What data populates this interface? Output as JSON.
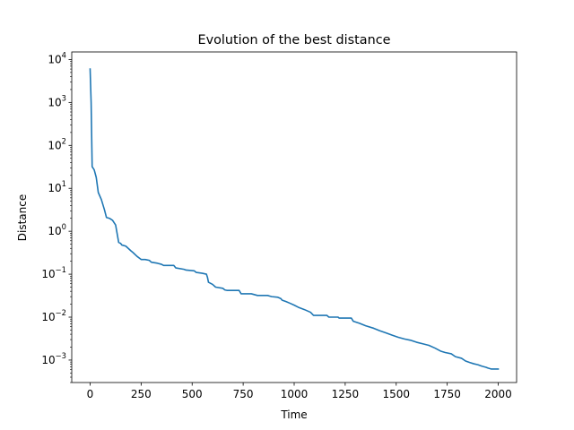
{
  "chart_data": {
    "type": "line",
    "title": "Evolution of the best distance",
    "xlabel": "Time",
    "ylabel": "Distance",
    "xlim": [
      -90,
      2090
    ],
    "ylim": [
      0.0003,
      15000
    ],
    "yscale": "log",
    "grid": false,
    "legend": null,
    "xticks": [
      0,
      250,
      500,
      750,
      1000,
      1250,
      1500,
      1750,
      2000
    ],
    "xtick_labels": [
      "0",
      "250",
      "500",
      "750",
      "1000",
      "1250",
      "1500",
      "1750",
      "2000"
    ],
    "yticks": [
      0.001,
      0.01,
      0.1,
      1,
      10,
      100,
      1000,
      10000
    ],
    "ytick_labels": [
      {
        "base": "10",
        "exp": "−3"
      },
      {
        "base": "10",
        "exp": "−2"
      },
      {
        "base": "10",
        "exp": "−1"
      },
      {
        "base": "10",
        "exp": "0"
      },
      {
        "base": "10",
        "exp": "1"
      },
      {
        "base": "10",
        "exp": "2"
      },
      {
        "base": "10",
        "exp": "3"
      },
      {
        "base": "10",
        "exp": "4"
      }
    ],
    "series": [
      {
        "color": "#1f77b4",
        "x": [
          0,
          5,
          10,
          20,
          30,
          40,
          55,
          70,
          80,
          95,
          110,
          125,
          140,
          150,
          155,
          175,
          200,
          210,
          230,
          245,
          250,
          270,
          290,
          300,
          330,
          350,
          360,
          410,
          420,
          460,
          470,
          510,
          520,
          550,
          570,
          575,
          580,
          600,
          615,
          650,
          660,
          670,
          730,
          740,
          760,
          790,
          800,
          820,
          870,
          880,
          890,
          920,
          935,
          940,
          960,
          980,
          1000,
          1020,
          1050,
          1080,
          1095,
          1100,
          1160,
          1170,
          1215,
          1220,
          1280,
          1290,
          1320,
          1350,
          1390,
          1420,
          1450,
          1480,
          1510,
          1540,
          1570,
          1600,
          1630,
          1660,
          1690,
          1720,
          1740,
          1770,
          1790,
          1820,
          1840,
          1860,
          1880,
          1900,
          1920,
          1940,
          1950,
          1965,
          2000
        ],
        "y": [
          6000,
          1000,
          32,
          27,
          18,
          8,
          5.5,
          3.2,
          2.1,
          2.0,
          1.8,
          1.4,
          0.55,
          0.52,
          0.48,
          0.45,
          0.35,
          0.32,
          0.26,
          0.23,
          0.22,
          0.22,
          0.21,
          0.19,
          0.18,
          0.17,
          0.16,
          0.16,
          0.14,
          0.13,
          0.125,
          0.12,
          0.11,
          0.105,
          0.1,
          0.085,
          0.065,
          0.058,
          0.05,
          0.047,
          0.043,
          0.042,
          0.042,
          0.035,
          0.035,
          0.035,
          0.034,
          0.032,
          0.032,
          0.031,
          0.03,
          0.029,
          0.027,
          0.025,
          0.023,
          0.021,
          0.019,
          0.017,
          0.015,
          0.013,
          0.011,
          0.011,
          0.011,
          0.01,
          0.01,
          0.0095,
          0.0095,
          0.008,
          0.0072,
          0.0063,
          0.0055,
          0.0048,
          0.0043,
          0.0038,
          0.0034,
          0.0031,
          0.0029,
          0.0026,
          0.0024,
          0.0022,
          0.0019,
          0.0016,
          0.0015,
          0.0014,
          0.0012,
          0.0011,
          0.00095,
          0.00088,
          0.00082,
          0.00078,
          0.00072,
          0.00068,
          0.00065,
          0.00062,
          0.00062
        ]
      }
    ]
  }
}
